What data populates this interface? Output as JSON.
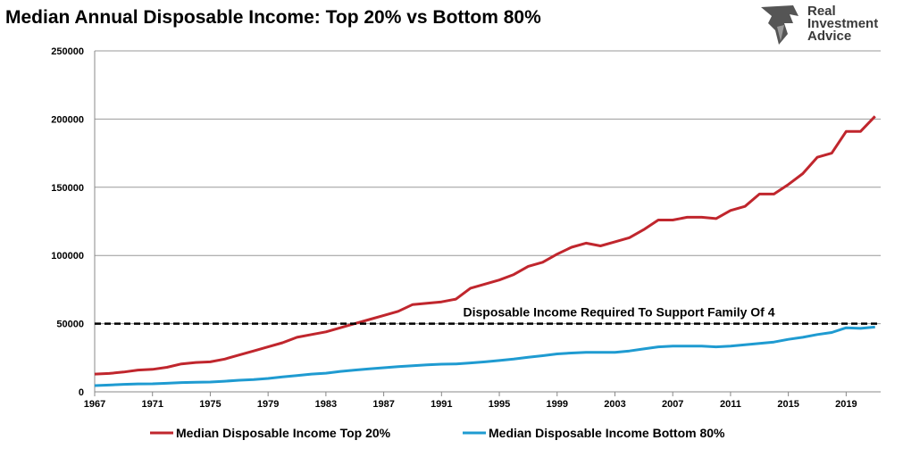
{
  "chart_data": {
    "type": "line",
    "title": "Median Annual Disposable Income: Top 20% vs Bottom 80%",
    "xlabel": "",
    "ylabel": "",
    "ylim": [
      0,
      250000
    ],
    "yticks": [
      0,
      50000,
      100000,
      150000,
      200000,
      250000
    ],
    "ytick_labels": [
      "0",
      "50000",
      "100000",
      "150000",
      "200000",
      "250000"
    ],
    "xtick_labels": [
      "1967",
      "1971",
      "1975",
      "1979",
      "1983",
      "1987",
      "1991",
      "1995",
      "1999",
      "2003",
      "2007",
      "2011",
      "2015",
      "2019"
    ],
    "x_start": 1967,
    "x_end": 2021,
    "grid": true,
    "legend_placement": "bottom",
    "series": [
      {
        "name": "Median Disposable Income Top 20%",
        "color": "#c0262d",
        "values": [
          13000,
          13500,
          14500,
          16000,
          16500,
          18000,
          20500,
          21500,
          22000,
          24000,
          27000,
          30000,
          33000,
          36000,
          40000,
          42000,
          44000,
          47000,
          50000,
          53000,
          56000,
          59000,
          64000,
          65000,
          66000,
          68000,
          76000,
          79000,
          82000,
          86000,
          92000,
          95000,
          101000,
          106000,
          109000,
          107000,
          110000,
          113000,
          119000,
          126000,
          126000,
          128000,
          128000,
          127000,
          133000,
          136000,
          145000,
          145000,
          152000,
          160000,
          172000,
          175000,
          191000,
          191000,
          202000
        ]
      },
      {
        "name": "Median Disposable Income Bottom 80%",
        "color": "#1f9bd1",
        "values": [
          4600,
          5000,
          5500,
          5800,
          5900,
          6300,
          6800,
          7000,
          7200,
          7800,
          8500,
          9000,
          9800,
          11000,
          12000,
          13000,
          13700,
          15000,
          16000,
          16800,
          17700,
          18500,
          19200,
          19800,
          20300,
          20500,
          21200,
          22000,
          23000,
          24000,
          25300,
          26500,
          27800,
          28500,
          29000,
          29000,
          29000,
          30000,
          31500,
          33000,
          33500,
          33500,
          33500,
          33000,
          33500,
          34500,
          35500,
          36500,
          38500,
          40000,
          42000,
          43500,
          47000,
          46500,
          47500
        ]
      }
    ],
    "annotations": [
      {
        "text": "Disposable Income Required To Support Family Of 4",
        "y": 50000
      }
    ]
  },
  "logo": {
    "text": "Real Investment Advice"
  }
}
